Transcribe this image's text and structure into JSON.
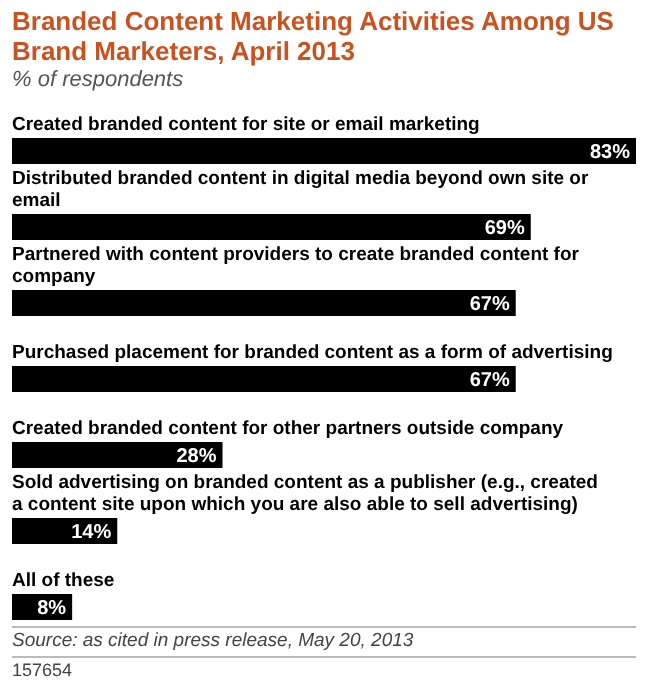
{
  "chart_data": {
    "type": "bar",
    "orientation": "horizontal",
    "title": "Branded Content Marketing Activities Among US Brand Marketers, April 2013",
    "subtitle": "% of respondents",
    "categories": [
      "Created branded content for site or email marketing",
      "Distributed branded content in digital media beyond own site or email",
      "Partnered with content providers to create branded content for company",
      "Purchased placement for branded content as a form of advertising",
      "Created branded content for other partners outside company",
      "Sold advertising on branded content as a publisher (e.g., created a content site upon which you are also able to sell advertising)",
      "All of these"
    ],
    "values": [
      83,
      69,
      67,
      67,
      28,
      14,
      8
    ],
    "value_labels": [
      "83%",
      "69%",
      "67%",
      "67%",
      "28%",
      "14%",
      "8%"
    ],
    "color": "#000000",
    "annotations": [
      "Source: as cited in press release, May 20, 2013",
      "157654"
    ]
  }
}
